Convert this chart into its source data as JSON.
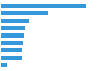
{
  "values": [
    11.36,
    6.33,
    3.76,
    3.21,
    3.09,
    2.97,
    2.83,
    2.77,
    0.82
  ],
  "bar_color": "#3498db",
  "background_color": "#ffffff",
  "xlim": [
    0,
    13
  ],
  "bar_height": 0.55
}
